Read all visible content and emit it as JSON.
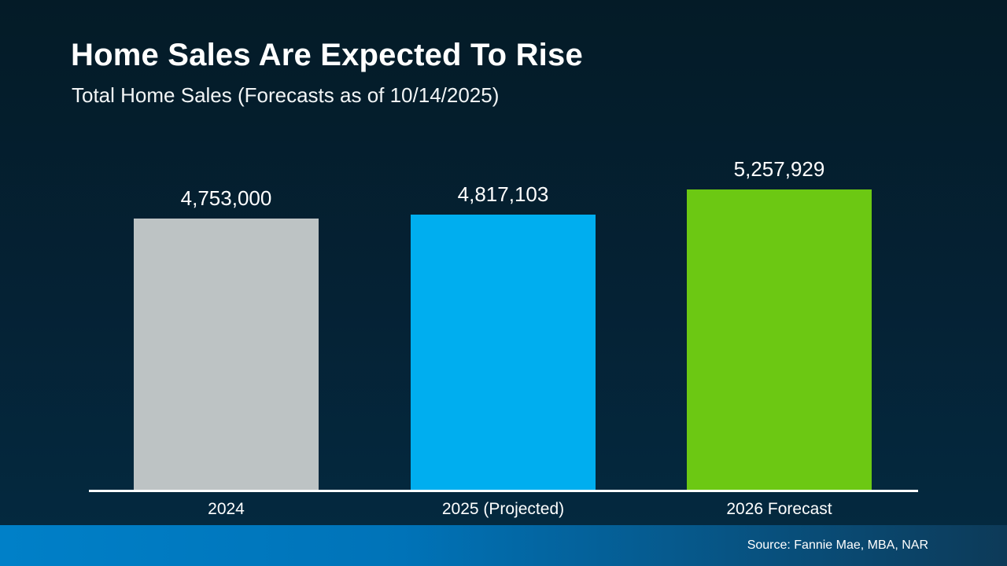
{
  "slide": {
    "title": "Home Sales Are Expected To Rise",
    "subtitle": "Total Home Sales (Forecasts as of 10/14/2025)",
    "source": "Source: Fannie Mae, MBA, NAR"
  },
  "colors": {
    "background_top": "#041b27",
    "background_bottom": "#04293f",
    "axis": "#ffffff",
    "text": "#ffffff",
    "footer_left": "#0080c8",
    "footer_right": "#0d3a58"
  },
  "chart_data": {
    "type": "bar",
    "title": "Home Sales Are Expected To Rise",
    "subtitle": "Total Home Sales (Forecasts as of 10/14/2025)",
    "categories": [
      "2024",
      "2025 (Projected)",
      "2026 Forecast"
    ],
    "values": [
      4753000,
      4817103,
      5257929
    ],
    "value_labels": [
      "4,753,000",
      "4,817,103",
      "5,257,929"
    ],
    "bar_colors": [
      "#bdc3c4",
      "#00aeef",
      "#6cc813"
    ],
    "xlabel": "",
    "ylabel": "",
    "ylim": [
      0,
      5257929
    ],
    "baseline": "zero",
    "grid": false,
    "legend": false,
    "annotations": [
      "Source: Fannie Mae, MBA, NAR"
    ]
  }
}
